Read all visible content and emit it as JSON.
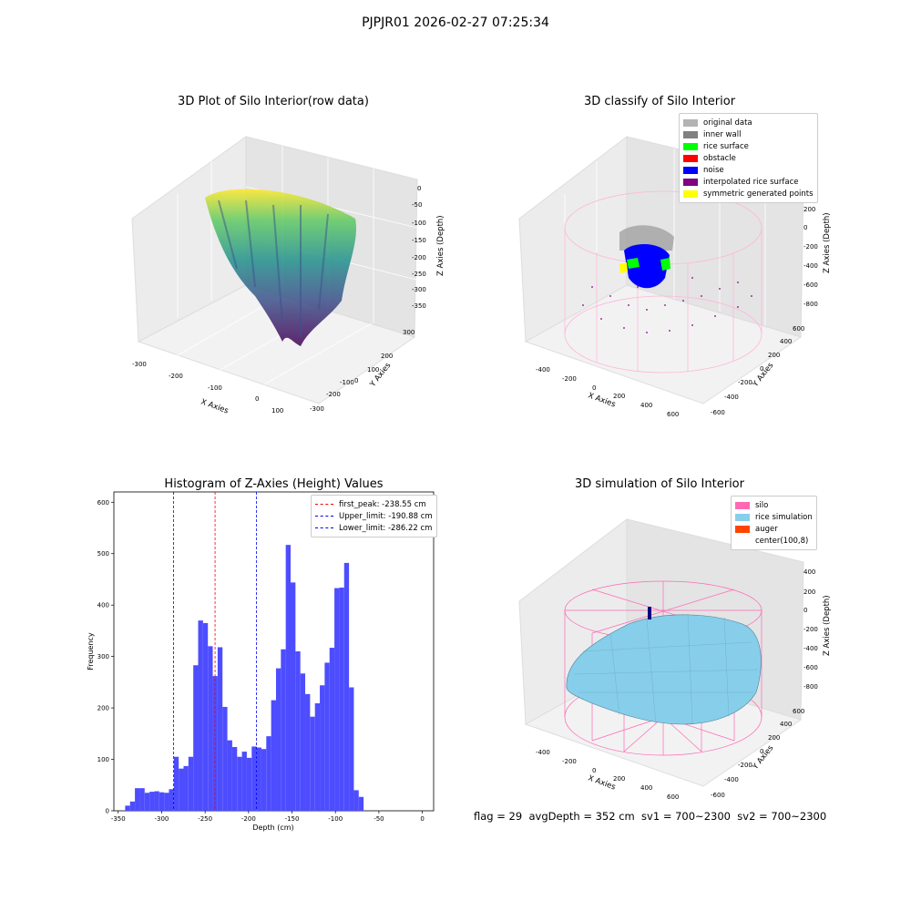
{
  "suptitle": "PJPJR01 2026-02-27 07:25:34",
  "footer": "flag = 29  avgDepth = 352 cm  sv1 = 700~2300  sv2 = 700~2300",
  "plot_raw": {
    "title": "3D Plot of Silo Interior(row data)",
    "xlabel": "X Axies",
    "ylabel": "Y Axies",
    "zlabel": "Z Axies (Depth)",
    "xticks": [
      "-300",
      "-200",
      "-100",
      "0",
      "100"
    ],
    "yticks": [
      "300",
      "200",
      "100",
      "0",
      "-100",
      "-200",
      "-300"
    ],
    "zticks": [
      "0",
      "-50",
      "-100",
      "-150",
      "-200",
      "-250",
      "-300",
      "-350"
    ]
  },
  "plot_classify": {
    "title": "3D classify of Silo Interior",
    "xlabel": "X Axies",
    "ylabel": "Y Axies",
    "zlabel": "Z Axies (Depth)",
    "xticks": [
      "-400",
      "-200",
      "0",
      "200",
      "400",
      "600"
    ],
    "yticks": [
      "600",
      "400",
      "200",
      "0",
      "-200",
      "-400",
      "-600"
    ],
    "zticks": [
      "400",
      "200",
      "0",
      "-200",
      "-400",
      "-600",
      "-800"
    ],
    "legend": [
      {
        "label": "original data",
        "color": "#b3b3b3"
      },
      {
        "label": "inner wall",
        "color": "#808080"
      },
      {
        "label": "rice surface",
        "color": "#00ff00"
      },
      {
        "label": "obstacle",
        "color": "#ff0000"
      },
      {
        "label": "noise",
        "color": "#0000ff"
      },
      {
        "label": "interpolated rice surface",
        "color": "#800080"
      },
      {
        "label": "symmetric generated points",
        "color": "#ffff00"
      }
    ]
  },
  "plot_sim": {
    "title": "3D simulation of Silo Interior",
    "xlabel": "X Axies",
    "ylabel": "Y Axies",
    "zlabel": "Z Axies (Depth)",
    "xticks": [
      "-400",
      "-200",
      "0",
      "200",
      "400",
      "600"
    ],
    "yticks": [
      "600",
      "400",
      "200",
      "0",
      "-200",
      "-400",
      "-600"
    ],
    "zticks": [
      "400",
      "200",
      "0",
      "-200",
      "-400",
      "-600",
      "-800"
    ],
    "legend": [
      {
        "label": "silo",
        "color": "#ff69b4"
      },
      {
        "label": "rice simulation",
        "color": "#87ceeb"
      },
      {
        "label": "auger",
        "color": "#ff4500"
      },
      {
        "label": "center(100,8)",
        "color": "#ffffff"
      }
    ]
  },
  "histogram": {
    "title": "Histogram of Z-Axies (Height) Values",
    "xlabel": "Depth (cm)",
    "ylabel": "Frequency",
    "legend": [
      {
        "label": "first_peak: -238.55 cm",
        "color": "#ff0000"
      },
      {
        "label": "Upper_limit: -190.88 cm",
        "color": "#0000ff"
      },
      {
        "label": "Lower_limit: -286.22 cm",
        "color": "#0000ff"
      }
    ]
  },
  "chart_data": {
    "type": "bar",
    "title": "Histogram of Z-Axies (Height) Values",
    "xlabel": "Depth (cm)",
    "ylabel": "Frequency",
    "bar_color": "#4d4dff",
    "xlim": [
      -355,
      13
    ],
    "ylim": [
      0,
      620
    ],
    "xticks": [
      -350,
      -300,
      -250,
      -200,
      -150,
      -100,
      -50,
      0
    ],
    "yticks": [
      0,
      100,
      200,
      300,
      400,
      500,
      600
    ],
    "bin_start": -342,
    "bin_width": 5.6,
    "values": [
      10,
      18,
      44,
      44,
      35,
      37,
      38,
      36,
      35,
      42,
      105,
      82,
      87,
      105,
      283,
      370,
      365,
      320,
      262,
      318,
      202,
      137,
      124,
      105,
      115,
      103,
      125,
      123,
      120,
      145,
      215,
      277,
      314,
      517,
      444,
      310,
      267,
      227,
      183,
      209,
      244,
      288,
      317,
      433,
      434,
      482,
      240,
      40,
      27
    ],
    "vlines": [
      {
        "x": -238.55,
        "color": "#ff0000"
      },
      {
        "x": -190.88,
        "color": "#0000ff"
      },
      {
        "x": -286.22,
        "color": "#0000ff"
      }
    ]
  }
}
